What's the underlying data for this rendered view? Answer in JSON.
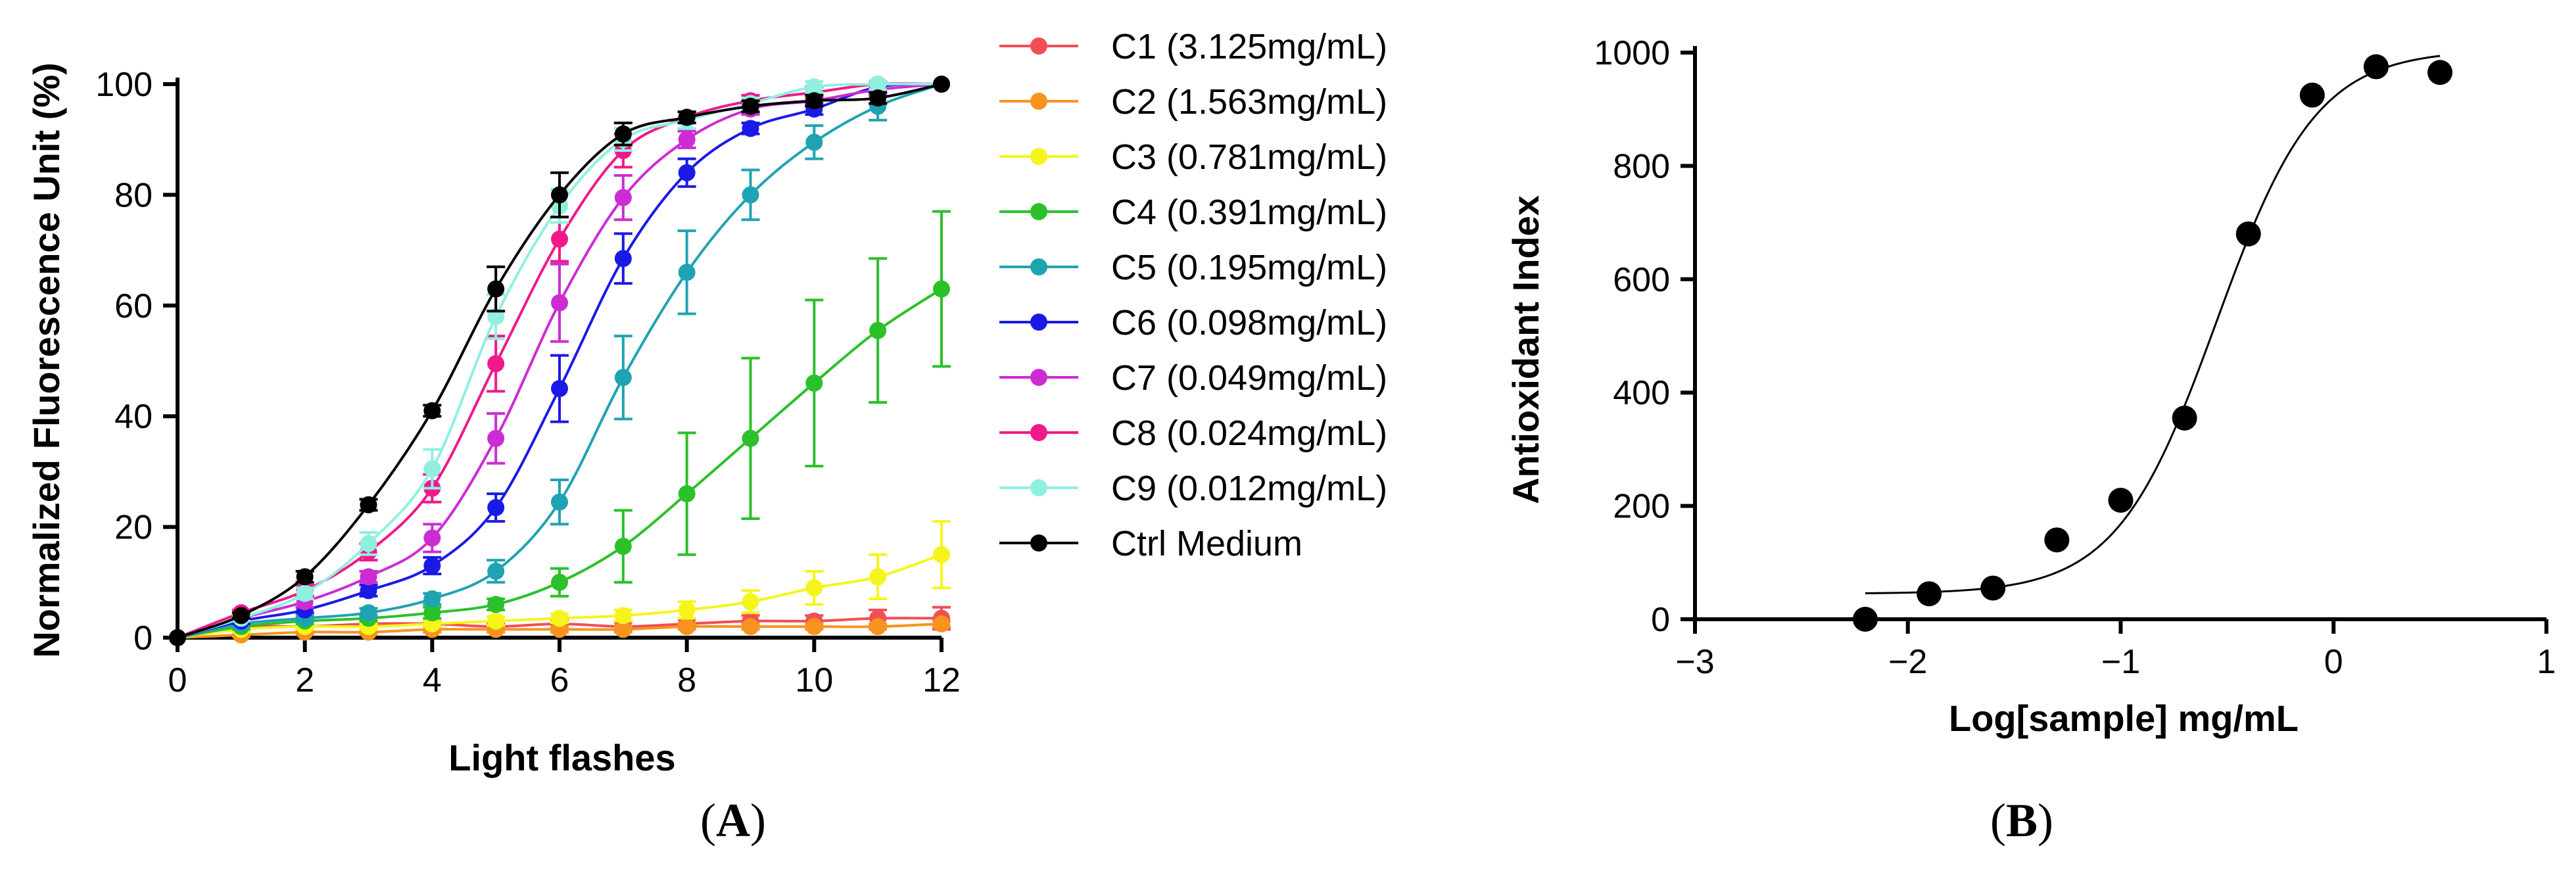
{
  "chart_data": [
    {
      "type": "line",
      "panel_label": "A",
      "xlabel": "Light flashes",
      "ylabel": "Normalized Fluorescence Unit (%)",
      "xlim": [
        0,
        12
      ],
      "ylim": [
        0,
        100
      ],
      "xticks": [
        "0",
        "2",
        "4",
        "6",
        "8",
        "10",
        "12"
      ],
      "yticks": [
        "0",
        "20",
        "40",
        "60",
        "80",
        "100"
      ],
      "legend_position": "right",
      "x": [
        0,
        1,
        2,
        3,
        4,
        5,
        6,
        7,
        8,
        9,
        10,
        11,
        12
      ],
      "series": [
        {
          "name": "C1 (3.125mg/mL)",
          "color": "#f04f55",
          "values": [
            0,
            2,
            2,
            2.5,
            2.5,
            2,
            2.5,
            2,
            2.5,
            3,
            3,
            3.5,
            3.5
          ],
          "errors": [
            0,
            0.5,
            0.5,
            0.5,
            0.5,
            0.5,
            0.8,
            0.8,
            0.8,
            1,
            1,
            1.5,
            2
          ]
        },
        {
          "name": "C2 (1.563mg/mL)",
          "color": "#f7931e",
          "values": [
            0,
            0.5,
            1,
            1,
            1.5,
            1.5,
            1.5,
            1.5,
            2,
            2,
            2,
            2,
            2.5
          ],
          "errors": [
            0,
            0.3,
            0.3,
            0.3,
            0.5,
            0.5,
            0.5,
            0.5,
            0.5,
            0.5,
            0.5,
            0.5,
            0.5
          ]
        },
        {
          "name": "C3 (0.781mg/mL)",
          "color": "#f5f51b",
          "values": [
            0,
            1.5,
            2,
            2,
            2.5,
            3,
            3.5,
            4,
            5,
            6.5,
            9,
            11,
            15
          ],
          "errors": [
            0,
            0.5,
            0.5,
            0.5,
            0.5,
            0.8,
            0.8,
            1,
            1.5,
            2,
            3,
            4,
            6
          ]
        },
        {
          "name": "C4 (0.391mg/mL)",
          "color": "#2ac12a",
          "values": [
            0,
            2,
            3,
            3.5,
            4.5,
            6,
            10,
            16.5,
            26,
            36,
            46,
            55.5,
            63
          ],
          "errors": [
            0,
            0.5,
            0.5,
            0.5,
            1,
            1,
            2.5,
            6.5,
            11,
            14.5,
            15,
            13,
            14
          ]
        },
        {
          "name": "C5 (0.195mg/mL)",
          "color": "#1fa3b3",
          "values": [
            0,
            2.5,
            3.5,
            4.5,
            7,
            12,
            24.5,
            47,
            66,
            80,
            89.5,
            96,
            100
          ],
          "errors": [
            0,
            0.5,
            0.5,
            0.8,
            1,
            2,
            4,
            7.5,
            7.5,
            4.5,
            3,
            2.5,
            0
          ]
        },
        {
          "name": "C6 (0.098mg/mL)",
          "color": "#1a1ae6",
          "values": [
            0,
            3,
            5,
            8.5,
            13,
            23.5,
            45,
            68.5,
            84,
            92,
            95.5,
            99.5,
            100
          ],
          "errors": [
            0,
            0.5,
            0.5,
            1,
            1.5,
            2.5,
            6,
            4.5,
            2.5,
            1,
            1,
            1,
            0
          ]
        },
        {
          "name": "C7 (0.049mg/mL)",
          "color": "#cc2cd4",
          "values": [
            0,
            3.5,
            6.5,
            11,
            18,
            36,
            60.5,
            79.5,
            90,
            95.5,
            97,
            99,
            100
          ],
          "errors": [
            0,
            0.5,
            1,
            1,
            2.5,
            4.5,
            7,
            4,
            1.5,
            1,
            1,
            1,
            0
          ]
        },
        {
          "name": "C8 (0.024mg/mL)",
          "color": "#f0198c",
          "values": [
            0,
            4.5,
            8.5,
            15.5,
            27,
            49.5,
            72,
            88,
            94,
            97,
            98.5,
            100,
            100
          ],
          "errors": [
            0,
            0.5,
            1,
            1.5,
            2.5,
            5,
            4,
            3,
            1,
            1,
            1,
            1,
            0
          ]
        },
        {
          "name": "C9 (0.012mg/mL)",
          "color": "#8ff0e0",
          "values": [
            0,
            3.5,
            8,
            17,
            30.5,
            58,
            78,
            90,
            93.5,
            96.5,
            99.5,
            100,
            100
          ],
          "errors": [
            0,
            0.5,
            1,
            2,
            3.5,
            4,
            3,
            2,
            1.5,
            1,
            1,
            1,
            0
          ]
        },
        {
          "name": "Ctrl Medium",
          "color": "#000000",
          "values": [
            0,
            4,
            11,
            24,
            41,
            63,
            80,
            91,
            94,
            96,
            97,
            97.5,
            100
          ],
          "errors": [
            0,
            0.5,
            1,
            1,
            1,
            4,
            4,
            2,
            1,
            1,
            1,
            1,
            0
          ]
        }
      ]
    },
    {
      "type": "scatter",
      "panel_label": "B",
      "xlabel": "Log[sample] mg/mL",
      "ylabel": "Antioxidant Index",
      "xlim": [
        -3,
        1
      ],
      "ylim": [
        0,
        1000
      ],
      "xticks": [
        "−3",
        "−2",
        "−1",
        "0",
        "1"
      ],
      "yticks": [
        "0",
        "200",
        "400",
        "600",
        "800",
        "1000"
      ],
      "points": {
        "x": [
          -2.2,
          -1.9,
          -1.6,
          -1.3,
          -1.0,
          -0.7,
          -0.4,
          -0.1,
          0.2,
          0.5
        ],
        "y": [
          0,
          45,
          55,
          140,
          210,
          355,
          680,
          925,
          975,
          965
        ]
      },
      "fit": {
        "model": "4PL",
        "bottom": 45,
        "top": 1005,
        "logEC50": -0.55,
        "hillslope": 1.85,
        "x_range": [
          -2.2,
          0.5
        ]
      }
    }
  ]
}
